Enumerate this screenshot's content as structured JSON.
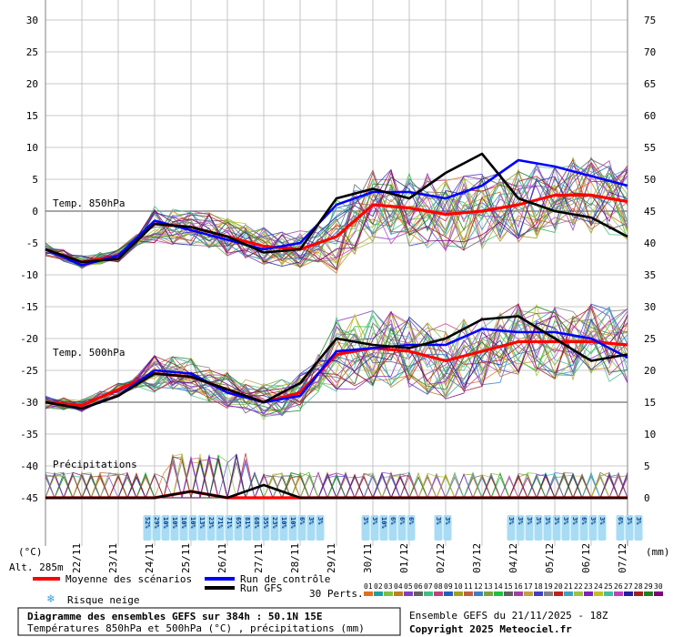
{
  "chart_data": {
    "type": "line",
    "title": "Diagramme des ensembles GEFS sur 384h : 50.1N 15E",
    "subtitle": "Températures 850hPa et 500hPa (°C) , précipitations (mm)",
    "run_info": "Ensemble GEFS du 21/11/2025 - 18Z",
    "copyright": "Copyright 2025 Meteociel.fr",
    "altitude": "Alt. 285m",
    "left_unit": "(°C)",
    "right_unit": "(mm)",
    "y_left": {
      "range": [
        -45,
        30
      ],
      "ticks": [
        30,
        25,
        20,
        15,
        10,
        5,
        0,
        -5,
        -10,
        -15,
        -20,
        -25,
        -30,
        -35,
        -40,
        -45
      ]
    },
    "y_right": {
      "range": [
        0,
        75
      ],
      "ticks": [
        75,
        70,
        65,
        60,
        55,
        50,
        45,
        40,
        35,
        30,
        25,
        20,
        15,
        10,
        5,
        0
      ]
    },
    "x_dates": [
      "22/11",
      "23/11",
      "24/11",
      "25/11",
      "26/11",
      "27/11",
      "28/11",
      "29/11",
      "30/11",
      "01/12",
      "02/12",
      "03/12",
      "04/12",
      "05/12",
      "06/12",
      "07/12"
    ],
    "panel_labels": [
      "Temp. 850hPa",
      "Temp. 500hPa",
      "Précipitations"
    ],
    "x_hours": [
      0,
      24,
      48,
      72,
      96,
      120,
      144,
      168,
      192,
      216,
      240,
      264,
      288,
      312,
      336,
      360,
      384
    ],
    "series": [
      {
        "name": "Moyenne des scénarios",
        "group": "t850",
        "color": "#ff0000",
        "values": [
          -6,
          -8,
          -7,
          -2,
          -2.5,
          -4,
          -5.5,
          -6,
          -4,
          1,
          0.5,
          -0.5,
          0,
          1,
          2.5,
          2.5,
          1.5
        ]
      },
      {
        "name": "Run de contrôle",
        "group": "t850",
        "color": "#0000ff",
        "values": [
          -6,
          -8.5,
          -7,
          -1.5,
          -3,
          -4.5,
          -6,
          -5,
          1,
          3,
          3,
          2,
          4,
          8,
          7,
          5.5,
          4
        ]
      },
      {
        "name": "Run GFS",
        "group": "t850",
        "color": "#000000",
        "values": [
          -6,
          -8,
          -7.5,
          -2,
          -2.5,
          -4,
          -6.5,
          -6,
          2,
          3.5,
          2,
          6,
          9,
          2,
          0,
          -1,
          -4
        ]
      },
      {
        "name": "Moyenne des scénarios",
        "group": "t500",
        "color": "#ff0000",
        "values": [
          -30,
          -30.5,
          -28,
          -25.5,
          -26,
          -28,
          -30,
          -28.5,
          -22.5,
          -21.5,
          -22,
          -23.5,
          -22,
          -20.5,
          -20.5,
          -20.5,
          -21
        ]
      },
      {
        "name": "Run de contrôle",
        "group": "t500",
        "color": "#0000ff",
        "values": [
          -30,
          -31,
          -29,
          -25,
          -25.5,
          -28.5,
          -30,
          -29,
          -22,
          -21.5,
          -21,
          -21,
          -18.5,
          -19,
          -19,
          -20,
          -23
        ]
      },
      {
        "name": "Run GFS",
        "group": "t500",
        "color": "#000000",
        "values": [
          -30,
          -31,
          -29,
          -25.5,
          -26,
          -28,
          -30,
          -27,
          -20,
          -21,
          -21.5,
          -20,
          -17,
          -16.5,
          -20,
          -23.5,
          -22.5
        ]
      },
      {
        "name": "Moyenne des scénarios",
        "group": "precip",
        "color": "#ff0000",
        "values": [
          0,
          0,
          0,
          0,
          1,
          0,
          0,
          0,
          0,
          0,
          0,
          0,
          0,
          0,
          0,
          0,
          0
        ]
      },
      {
        "name": "Run GFS",
        "group": "precip",
        "color": "#000000",
        "values": [
          0,
          0,
          0,
          0,
          1,
          0,
          2,
          0,
          0,
          0,
          0,
          0,
          0,
          0,
          0,
          0,
          0
        ]
      }
    ],
    "snow_risk": [
      {
        "date": "24/11",
        "values": [
          "52%",
          "29%",
          "10%",
          "10%",
          "16%"
        ]
      },
      {
        "date": "25/11",
        "values": [
          "10%",
          "10%",
          "13%",
          "23%",
          "58%"
        ]
      },
      {
        "date": "26/11",
        "values": [
          "71%",
          "71%",
          "65%",
          "81%",
          "68%"
        ]
      },
      {
        "date": "27/11",
        "values": [
          "68%",
          "35%",
          "23%",
          "10%",
          "10%"
        ]
      },
      {
        "date": "28/11",
        "values": [
          "10%",
          "6%",
          "3%",
          "3%"
        ]
      },
      {
        "date": "30/11",
        "values": [
          "3%",
          "3%",
          "10%",
          "6%"
        ]
      },
      {
        "date": "01/12",
        "values": [
          "6%",
          "6%"
        ]
      },
      {
        "date": "02/12",
        "values": [
          "3%",
          "3%"
        ]
      },
      {
        "date": "04/12",
        "values": [
          "3%",
          "3%",
          "3%",
          "3%",
          "3%",
          "3%",
          "3%",
          "3%"
        ]
      },
      {
        "date": "06/12",
        "values": [
          "6%",
          "3%",
          "3%"
        ]
      },
      {
        "date": "07/12",
        "values": [
          "6%",
          "3%",
          "3%"
        ]
      }
    ],
    "legend": {
      "mean": "Moyenne des scénarios",
      "control": "Run de contrôle",
      "gfs": "Run GFS",
      "snow": "Risque neige",
      "perts_label": "30 Perts.",
      "perts": [
        "01",
        "02",
        "03",
        "04",
        "05",
        "06",
        "07",
        "08",
        "09",
        "10",
        "11",
        "12",
        "13",
        "14",
        "15",
        "16",
        "17",
        "18",
        "19",
        "20",
        "21",
        "22",
        "23",
        "24",
        "25",
        "26",
        "27",
        "28",
        "29",
        "30"
      ],
      "pert_colors": [
        "#e07020",
        "#20a0a0",
        "#80c040",
        "#c08020",
        "#8040c0",
        "#606060",
        "#40c080",
        "#c04080",
        "#2060c0",
        "#a0a020",
        "#c06040",
        "#4080c0",
        "#80a040",
        "#20c040",
        "#606060",
        "#a040a0",
        "#c0a040",
        "#4040c0",
        "#808080",
        "#c02020",
        "#40a0c0",
        "#a0c040",
        "#8020c0",
        "#c0c020",
        "#40c0a0",
        "#c040c0",
        "#2020a0",
        "#a02020",
        "#208020",
        "#800080"
      ]
    }
  }
}
